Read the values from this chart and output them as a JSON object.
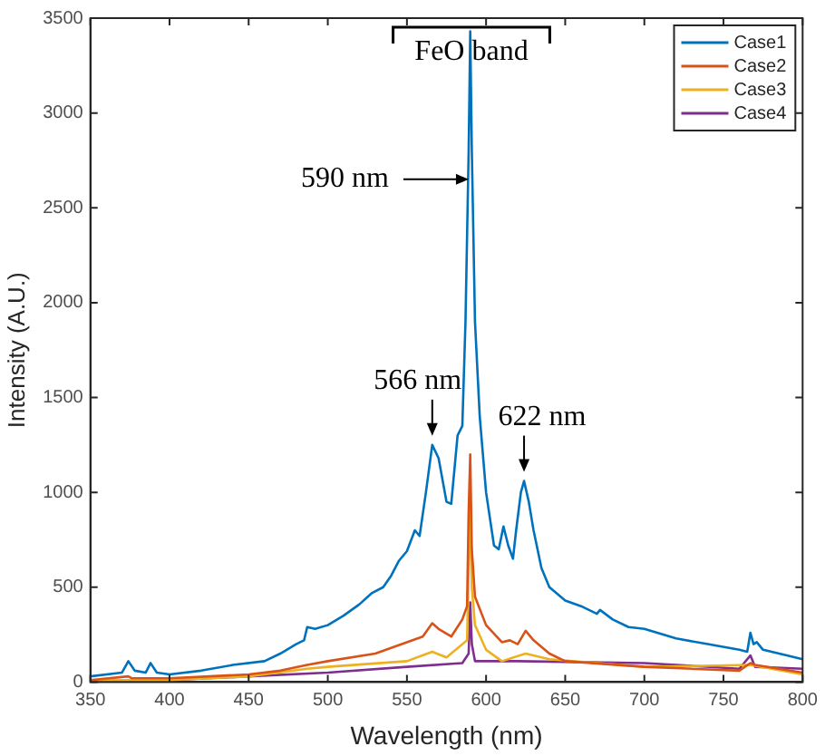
{
  "chart_data": {
    "type": "line",
    "xlabel": "Wavelength (nm)",
    "ylabel": "Intensity (A.U.)",
    "xlim": [
      350,
      800
    ],
    "xticks": [
      350,
      400,
      450,
      500,
      550,
      600,
      650,
      700,
      750,
      800
    ],
    "ylim": [
      0,
      3500
    ],
    "yticks": [
      0,
      500,
      1000,
      1500,
      2000,
      2500,
      3000,
      3500
    ],
    "grid": false,
    "legend": "top right",
    "marker": "none",
    "line_style": "solid",
    "series": [
      {
        "name": "Case1",
        "color": "#0072bd",
        "x": [
          350,
          370,
          374,
          378,
          385,
          388,
          392,
          400,
          420,
          440,
          460,
          470,
          480,
          485,
          487,
          492,
          500,
          510,
          520,
          528,
          535,
          540,
          545,
          550,
          555,
          558,
          562,
          566,
          570,
          575,
          578,
          582,
          585,
          587,
          589,
          590,
          591,
          593,
          596,
          600,
          605,
          608,
          611,
          614,
          617,
          619,
          622,
          624,
          627,
          630,
          635,
          640,
          650,
          660,
          670,
          672,
          680,
          690,
          700,
          720,
          740,
          760,
          765,
          767,
          769,
          771,
          775,
          790,
          800
        ],
        "values": [
          30,
          50,
          110,
          60,
          50,
          100,
          50,
          40,
          60,
          90,
          110,
          150,
          200,
          220,
          290,
          280,
          300,
          350,
          410,
          470,
          500,
          560,
          640,
          690,
          800,
          770,
          1000,
          1250,
          1180,
          950,
          940,
          1300,
          1350,
          1900,
          2800,
          3430,
          2800,
          1900,
          1400,
          1000,
          720,
          700,
          820,
          720,
          650,
          800,
          1000,
          1060,
          950,
          800,
          600,
          500,
          430,
          400,
          360,
          380,
          330,
          290,
          280,
          230,
          200,
          170,
          160,
          260,
          200,
          210,
          170,
          140,
          120
        ]
      },
      {
        "name": "Case2",
        "color": "#d95319",
        "x": [
          350,
          374,
          376,
          400,
          450,
          470,
          487,
          500,
          530,
          550,
          560,
          566,
          570,
          578,
          585,
          588,
          589,
          590,
          591,
          593,
          600,
          610,
          615,
          620,
          625,
          630,
          640,
          650,
          700,
          760,
          767,
          770,
          800
        ],
        "values": [
          10,
          30,
          20,
          20,
          40,
          60,
          90,
          110,
          150,
          210,
          240,
          310,
          280,
          240,
          330,
          400,
          900,
          1200,
          700,
          450,
          300,
          210,
          220,
          200,
          270,
          220,
          150,
          110,
          80,
          60,
          100,
          90,
          50
        ]
      },
      {
        "name": "Case3",
        "color": "#edb120",
        "x": [
          350,
          400,
          450,
          487,
          500,
          550,
          566,
          575,
          588,
          589,
          590,
          591,
          593,
          600,
          610,
          625,
          640,
          700,
          767,
          800
        ],
        "values": [
          10,
          10,
          30,
          70,
          80,
          110,
          160,
          130,
          220,
          600,
          950,
          500,
          300,
          170,
          110,
          150,
          120,
          80,
          90,
          40
        ]
      },
      {
        "name": "Case4",
        "color": "#7e2f8e",
        "x": [
          350,
          400,
          450,
          500,
          550,
          585,
          589,
          590,
          591,
          593,
          620,
          700,
          760,
          767,
          770,
          800
        ],
        "values": [
          10,
          10,
          30,
          50,
          80,
          100,
          150,
          420,
          200,
          110,
          110,
          100,
          70,
          140,
          80,
          70
        ]
      }
    ],
    "annotations": [
      "FeO band",
      {
        "text": "590 nm",
        "x": 589,
        "y": 2650
      },
      {
        "text": "566 nm",
        "x": 566,
        "y": 1250
      },
      {
        "text": "622 nm",
        "x": 624,
        "y": 1060
      }
    ]
  }
}
